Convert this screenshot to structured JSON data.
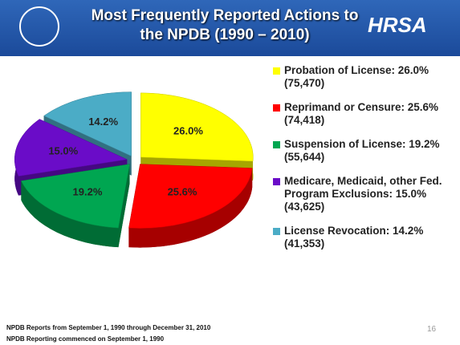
{
  "chart_data": {
    "type": "pie",
    "title": "Most Frequently Reported Actions to the NPDB (1990 – 2010)",
    "categories": [
      "Probation of License: 26.0% (75,470)",
      "Reprimand or Censure: 25.6% (74,418)",
      "Suspension of License: 19.2% (55,644)",
      "Medicare, Medicaid, other Fed. Program Exclusions: 15.0% (43,625)",
      "License Revocation: 14.2% (41,353)"
    ],
    "values": [
      26.0,
      25.6,
      19.2,
      15.0,
      14.2
    ],
    "value_labels": [
      "26.0%",
      "25.6%",
      "19.2%",
      "15.0%",
      "14.2%"
    ],
    "colors": [
      "#ffff00",
      "#ff0000",
      "#00a651",
      "#6a0cc8",
      "#4bacc6"
    ],
    "legend": "right"
  },
  "header": {
    "logo_text": "HRSA"
  },
  "footer": {
    "notes": [
      "NPDB Reports from September 1, 1990 through December 31, 2010",
      "NPDB Reporting commenced on September 1, 1990"
    ],
    "page_number": "16"
  }
}
